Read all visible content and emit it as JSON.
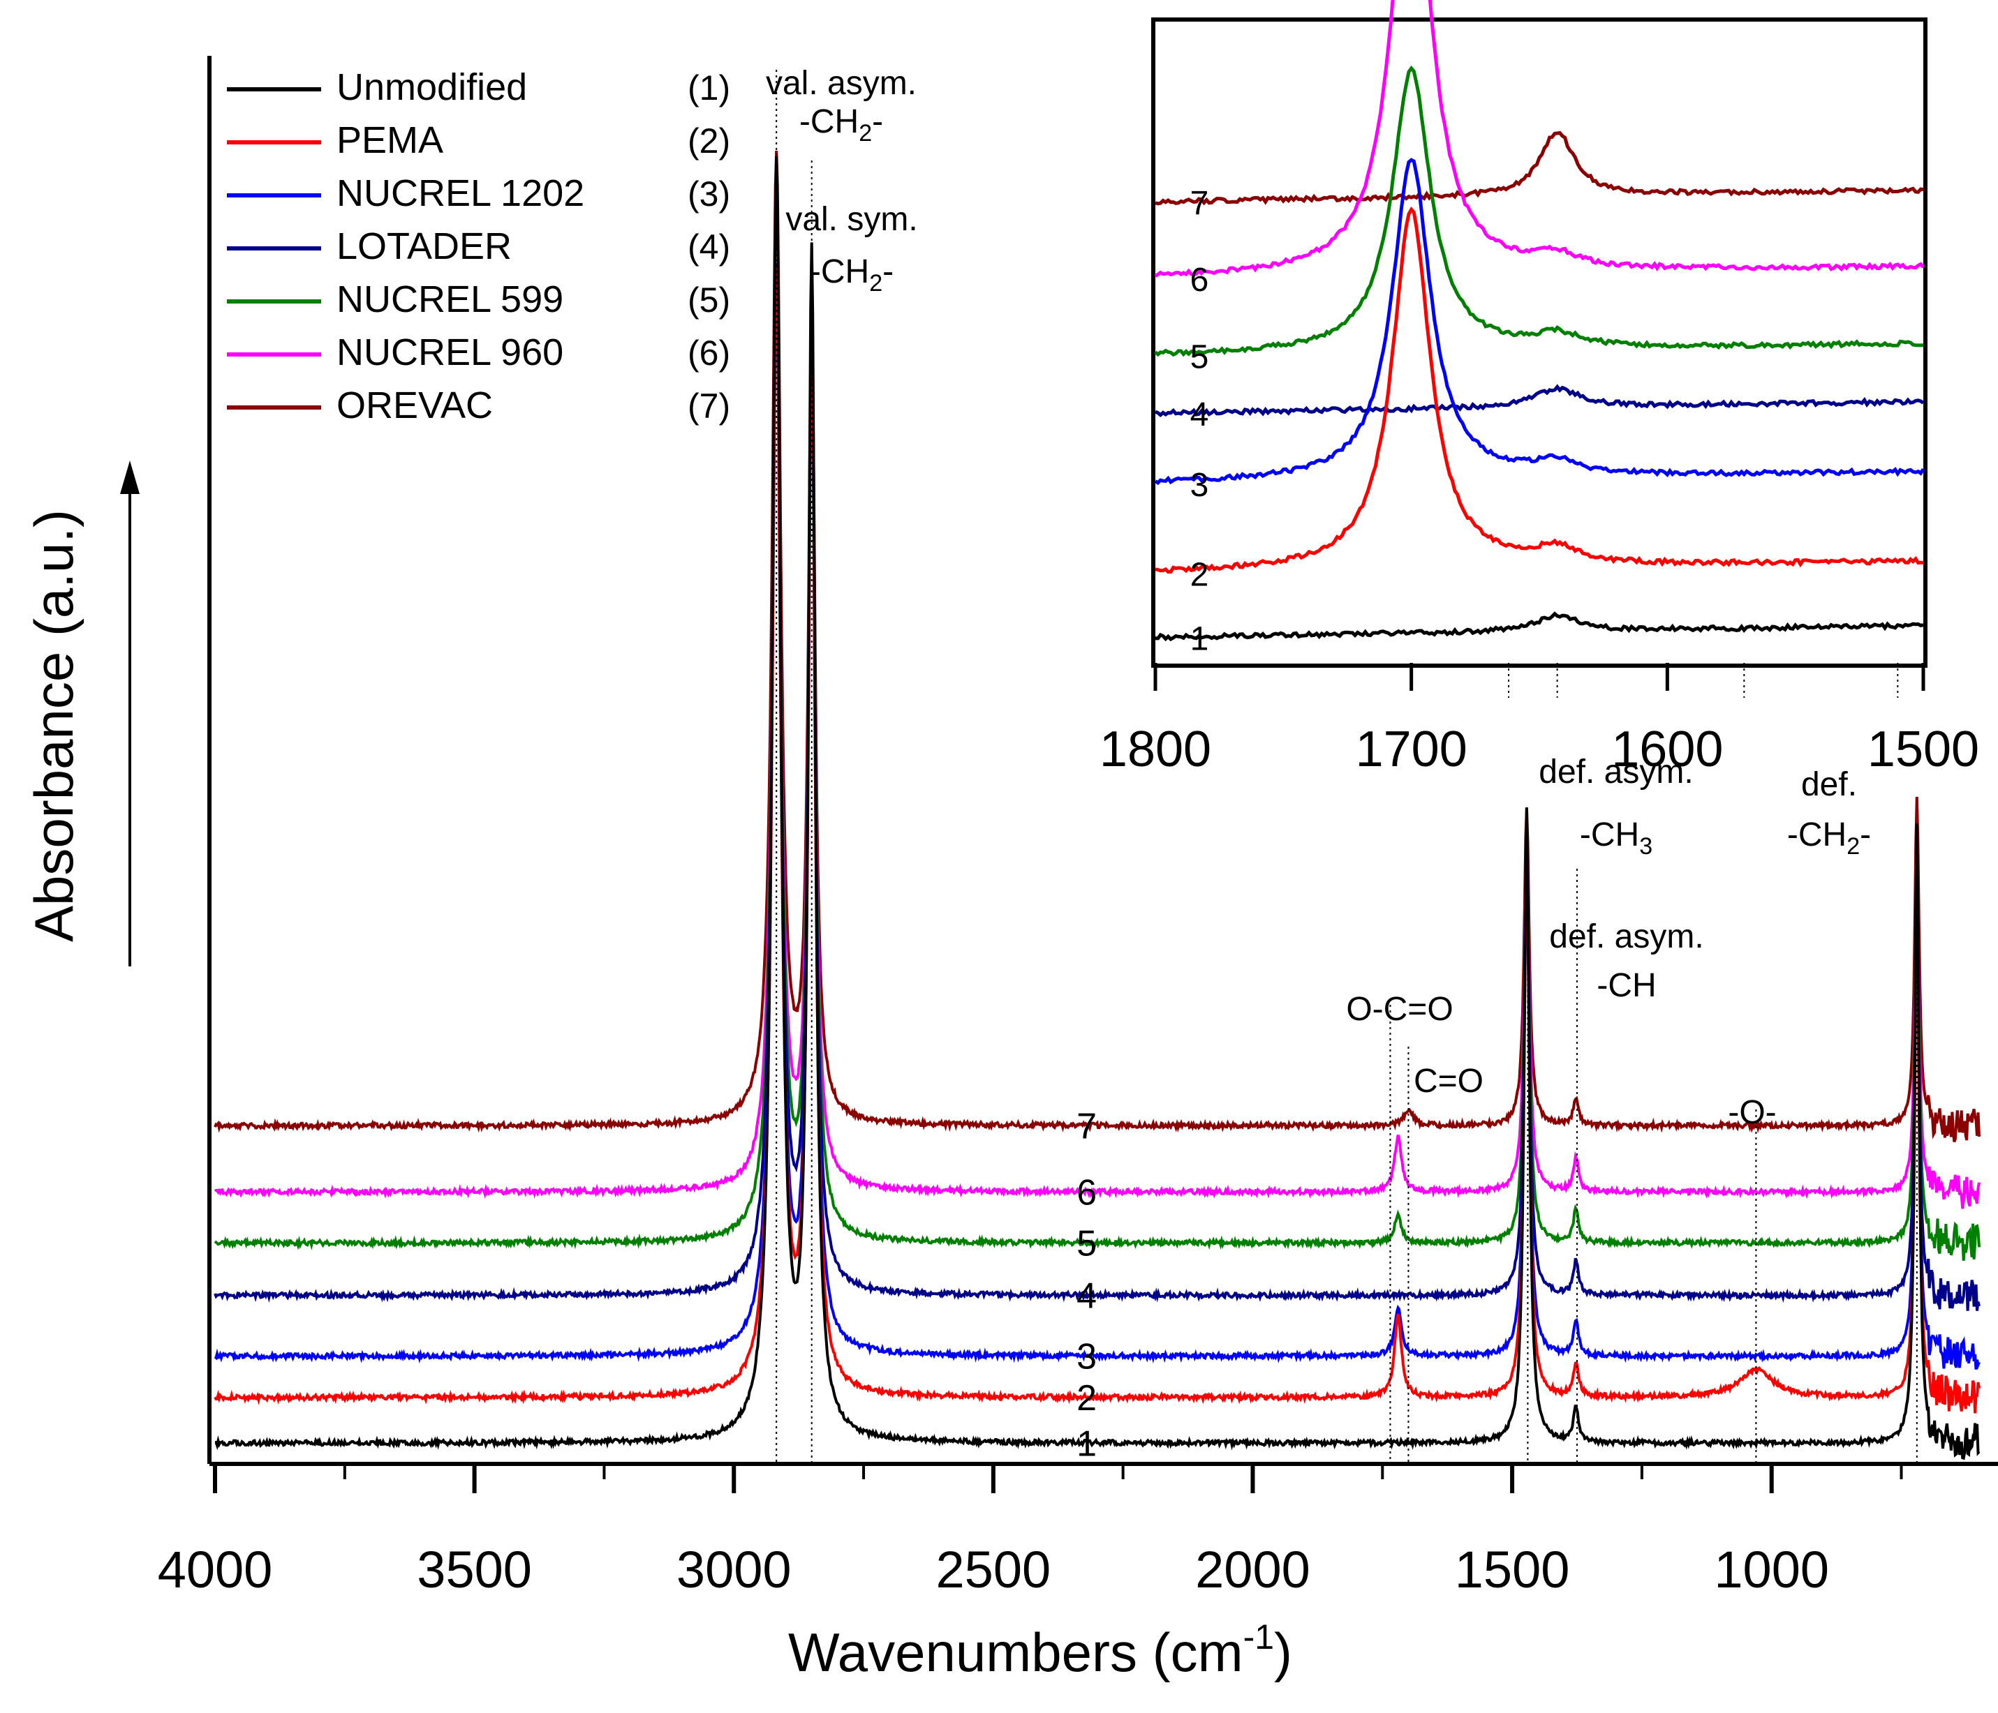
{
  "colors": {
    "1": "#000000",
    "2": "#ff0000",
    "3": "#0000ff",
    "4": "#00008b",
    "5": "#008000",
    "6": "#ff00ff",
    "7": "#8b0000"
  },
  "chart_data": {
    "type": "line",
    "title": "",
    "xlabel": "Wavenumbers (cm",
    "xlabel_sup": "-1",
    "xlabel_end": ")",
    "ylabel": "Absorbance (a.u.)",
    "xlim": [
      4000,
      600
    ],
    "ylim": [
      0,
      10
    ],
    "xticks": [
      4000,
      3500,
      3000,
      2500,
      2000,
      1500,
      1000
    ],
    "legend": [
      {
        "id": "1",
        "label": "Unmodified",
        "num": "(1)"
      },
      {
        "id": "2",
        "label": "PEMA",
        "num": "(2)"
      },
      {
        "id": "3",
        "label": "NUCREL 1202",
        "num": "(3)"
      },
      {
        "id": "4",
        "label": "LOTADER",
        "num": "(4)"
      },
      {
        "id": "5",
        "label": "NUCREL 599",
        "num": "(5)"
      },
      {
        "id": "6",
        "label": "NUCREL 960",
        "num": "(6)"
      },
      {
        "id": "7",
        "label": "OREVAC",
        "num": "(7)"
      }
    ],
    "series": [
      {
        "id": "1",
        "label": "1",
        "baseline": 0.15,
        "peaks": [
          [
            2918,
            9.2,
            10
          ],
          [
            2850,
            8.5,
            8
          ],
          [
            1720,
            0.0,
            8
          ],
          [
            1700,
            0.0,
            10
          ],
          [
            1643,
            0.0,
            10
          ],
          [
            1472,
            4.6,
            6
          ],
          [
            1377,
            0.25,
            6
          ],
          [
            1030,
            0.0,
            40
          ],
          [
            720,
            4.5,
            5
          ]
        ]
      },
      {
        "id": "2",
        "label": "2",
        "baseline": 0.48,
        "peaks": [
          [
            2918,
            8.1,
            10
          ],
          [
            2850,
            7.6,
            8
          ],
          [
            1720,
            0.6,
            8
          ],
          [
            1700,
            0.0,
            10
          ],
          [
            1643,
            0.0,
            10
          ],
          [
            1472,
            4.0,
            6
          ],
          [
            1377,
            0.25,
            6
          ],
          [
            1030,
            0.2,
            40
          ],
          [
            720,
            3.5,
            5
          ]
        ]
      },
      {
        "id": "3",
        "label": "3",
        "baseline": 0.78,
        "peaks": [
          [
            2918,
            7.7,
            10
          ],
          [
            2850,
            7.2,
            8
          ],
          [
            1720,
            0.35,
            8
          ],
          [
            1700,
            0.0,
            10
          ],
          [
            1643,
            0.0,
            10
          ],
          [
            1472,
            3.6,
            6
          ],
          [
            1377,
            0.25,
            6
          ],
          [
            1030,
            0.0,
            40
          ],
          [
            720,
            3.2,
            5
          ]
        ]
      },
      {
        "id": "4",
        "label": "4",
        "baseline": 1.22,
        "peaks": [
          [
            2918,
            7.4,
            10
          ],
          [
            2850,
            6.9,
            8
          ],
          [
            1720,
            0.0,
            8
          ],
          [
            1700,
            0.0,
            10
          ],
          [
            1643,
            0.0,
            10
          ],
          [
            1472,
            3.3,
            6
          ],
          [
            1377,
            0.25,
            6
          ],
          [
            1030,
            0.0,
            40
          ],
          [
            720,
            2.9,
            5
          ]
        ]
      },
      {
        "id": "5",
        "label": "5",
        "baseline": 1.6,
        "peaks": [
          [
            2918,
            7.0,
            10
          ],
          [
            2850,
            6.5,
            8
          ],
          [
            1720,
            0.2,
            8
          ],
          [
            1700,
            0.0,
            10
          ],
          [
            1643,
            0.0,
            10
          ],
          [
            1472,
            2.9,
            6
          ],
          [
            1377,
            0.25,
            6
          ],
          [
            1030,
            0.0,
            40
          ],
          [
            720,
            2.6,
            5
          ]
        ]
      },
      {
        "id": "6",
        "label": "6",
        "baseline": 1.97,
        "peaks": [
          [
            2918,
            6.5,
            10
          ],
          [
            2850,
            6.0,
            8
          ],
          [
            1720,
            0.4,
            8
          ],
          [
            1700,
            0.0,
            10
          ],
          [
            1643,
            0.0,
            10
          ],
          [
            1472,
            2.6,
            6
          ],
          [
            1377,
            0.25,
            6
          ],
          [
            1030,
            0.0,
            40
          ],
          [
            720,
            2.3,
            5
          ]
        ]
      },
      {
        "id": "7",
        "label": "7",
        "baseline": 2.45,
        "peaks": [
          [
            2918,
            7.0,
            10
          ],
          [
            2850,
            5.7,
            8
          ],
          [
            1720,
            0.0,
            8
          ],
          [
            1700,
            0.12,
            10
          ],
          [
            1643,
            0.0,
            10
          ],
          [
            1472,
            2.3,
            6
          ],
          [
            1377,
            0.2,
            6
          ],
          [
            1030,
            0.0,
            40
          ],
          [
            720,
            2.4,
            5
          ]
        ]
      }
    ],
    "annotations": [
      {
        "id": "val-asym",
        "wn": 2918,
        "line1": "val. asym.",
        "line2": "-CH",
        "sub": "2",
        "suffix": "-"
      },
      {
        "id": "val-sym",
        "wn": 2850,
        "line1": "val. sym.",
        "line2": "-CH",
        "sub": "2",
        "suffix": "-"
      },
      {
        "id": "ocoo",
        "wn": 1735,
        "line1": "O-C=O"
      },
      {
        "id": "co",
        "wn": 1700,
        "line1": "C=O"
      },
      {
        "id": "def-asym-ch3",
        "wn": 1470,
        "line1": "def. asym.",
        "line2": "-CH",
        "sub": "3",
        "suffix": ""
      },
      {
        "id": "def-asym-ch",
        "wn": 1375,
        "line1": "def. asym.",
        "line2": "-CH"
      },
      {
        "id": "o",
        "wn": 1030,
        "line1": "-O-"
      },
      {
        "id": "def-ch2",
        "wn": 720,
        "line1": "def.",
        "line2": "-CH",
        "sub": "2",
        "suffix": "-"
      }
    ]
  },
  "inset": {
    "xlim": [
      1800,
      1500
    ],
    "ylim": [
      0,
      10
    ],
    "xticks": [
      1800,
      1700,
      1600,
      1500
    ],
    "series": [
      {
        "id": "1",
        "label": "1",
        "baseline": 0.4,
        "peaks": [
          [
            1700,
            0.0,
            10
          ],
          [
            1643,
            0.25,
            10
          ]
        ]
      },
      {
        "id": "2",
        "label": "2",
        "baseline": 1.4,
        "peaks": [
          [
            1700,
            5.6,
            9
          ],
          [
            1643,
            0.25,
            10
          ]
        ]
      },
      {
        "id": "3",
        "label": "3",
        "baseline": 2.8,
        "peaks": [
          [
            1700,
            5.0,
            9
          ],
          [
            1643,
            0.2,
            10
          ]
        ]
      },
      {
        "id": "4",
        "label": "4",
        "baseline": 3.9,
        "peaks": [
          [
            1700,
            0.0,
            10
          ],
          [
            1643,
            0.3,
            10
          ]
        ]
      },
      {
        "id": "5",
        "label": "5",
        "baseline": 4.8,
        "peaks": [
          [
            1700,
            4.4,
            9
          ],
          [
            1643,
            0.2,
            10
          ]
        ]
      },
      {
        "id": "6",
        "label": "6",
        "baseline": 6.0,
        "peaks": [
          [
            1700,
            7.1,
            9
          ],
          [
            1643,
            0.2,
            10
          ]
        ]
      },
      {
        "id": "7",
        "label": "7",
        "baseline": 7.2,
        "peaks": [
          [
            1700,
            0.0,
            10
          ],
          [
            1643,
            1.0,
            8
          ]
        ]
      }
    ],
    "vlines": [
      1662,
      1643,
      1570,
      1510
    ]
  }
}
